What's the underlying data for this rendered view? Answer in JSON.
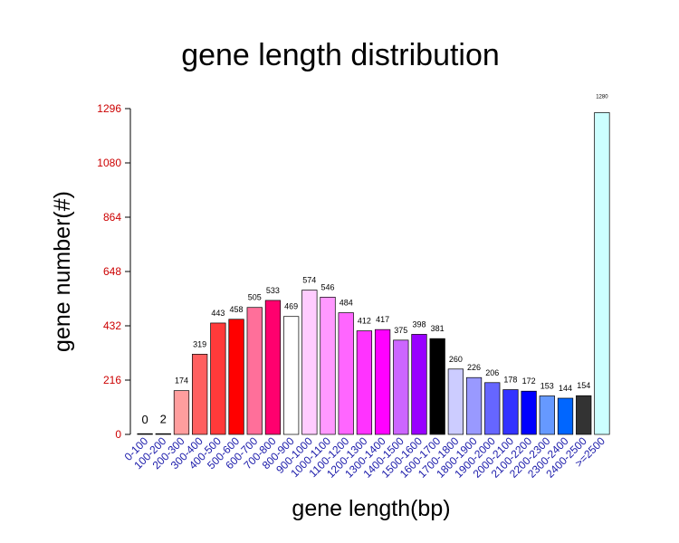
{
  "chart_data": {
    "type": "bar",
    "title": "gene length distribution",
    "xlabel": "gene length(bp)",
    "ylabel": "gene number(#)",
    "ylim": [
      0,
      1296
    ],
    "yticks": [
      "0",
      "216",
      "432",
      "648",
      "864",
      "1080",
      "1296"
    ],
    "grid": false,
    "categories": [
      "0-100",
      "100-200",
      "200-300",
      "300-400",
      "400-500",
      "500-600",
      "600-700",
      "700-800",
      "800-900",
      "900-1000",
      "1000-1100",
      "1100-1200",
      "1200-1300",
      "1300-1400",
      "1400-1500",
      "1500-1600",
      "1600-1700",
      "1700-1800",
      "1800-1900",
      "1900-2000",
      "2000-2100",
      "2100-2200",
      "2200-2300",
      "2300-2400",
      "2400-2500",
      ">=2500"
    ],
    "values": [
      0,
      2,
      174,
      319,
      443,
      458,
      505,
      533,
      469,
      574,
      546,
      484,
      412,
      417,
      375,
      398,
      381,
      260,
      226,
      206,
      178,
      172,
      153,
      144,
      154,
      1280
    ],
    "bar_colors": [
      "#000000",
      "#1a1a1a",
      "#ff9e9e",
      "#ff5f5f",
      "#ff3a3a",
      "#ff0000",
      "#ff6f9a",
      "#ff006e",
      "#ffffff",
      "#ffccff",
      "#ff99ff",
      "#ff66ff",
      "#ff33ff",
      "#ff00ff",
      "#cc66ff",
      "#9900ff",
      "#000000",
      "#ccccff",
      "#9999ff",
      "#6666ff",
      "#3333ff",
      "#0000ff",
      "#6699ff",
      "#0066ff",
      "#333333",
      "#ccffff"
    ],
    "colors": {
      "ytick": "#cc0000",
      "xtick": "#1a1aaa",
      "axis": "#000000"
    }
  }
}
